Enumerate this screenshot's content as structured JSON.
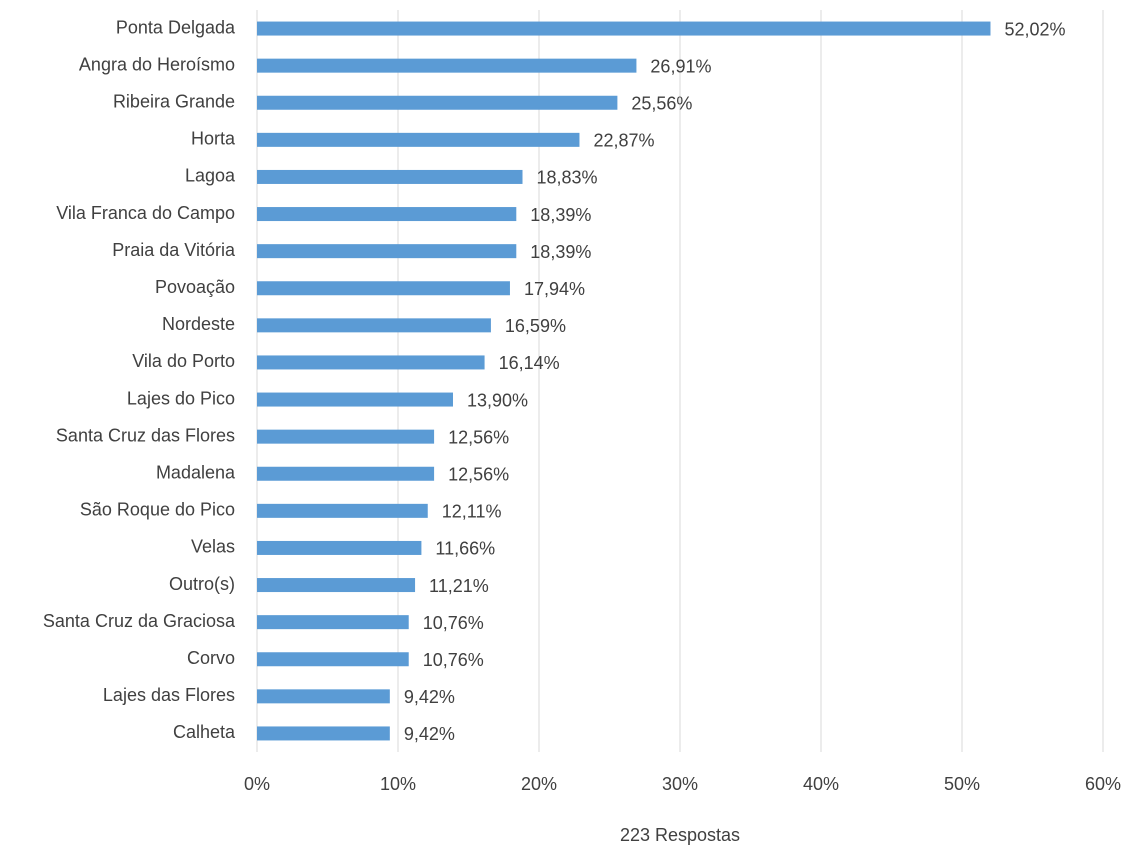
{
  "chart_data": {
    "type": "bar",
    "orientation": "horizontal",
    "x_label": "223 Respostas",
    "categories": [
      "Ponta Delgada",
      "Angra do Heroísmo",
      "Ribeira Grande",
      "Horta",
      "Lagoa",
      "Vila Franca do Campo",
      "Praia da Vitória",
      "Povoação",
      "Nordeste",
      "Vila do Porto",
      "Lajes do Pico",
      "Santa Cruz das Flores",
      "Madalena",
      "São Roque do Pico",
      "Velas",
      "Outro(s)",
      "Santa Cruz da Graciosa",
      "Corvo",
      "Lajes das Flores",
      "Calheta"
    ],
    "values": [
      52.02,
      26.91,
      25.56,
      22.87,
      18.83,
      18.39,
      18.39,
      17.94,
      16.59,
      16.14,
      13.9,
      12.56,
      12.56,
      12.11,
      11.66,
      11.21,
      10.76,
      10.76,
      9.42,
      9.42
    ],
    "value_labels": [
      "52,02%",
      "26,91%",
      "25,56%",
      "22,87%",
      "18,83%",
      "18,39%",
      "18,39%",
      "17,94%",
      "16,59%",
      "16,14%",
      "13,90%",
      "12,56%",
      "12,56%",
      "12,11%",
      "11,66%",
      "11,21%",
      "10,76%",
      "10,76%",
      "9,42%",
      "9,42%"
    ],
    "color": "#5b9bd5",
    "xlim": [
      0,
      60
    ],
    "xticks": [
      {
        "value": 0,
        "label": "0%"
      },
      {
        "value": 10,
        "label": "10%"
      },
      {
        "value": 20,
        "label": "20%"
      },
      {
        "value": 30,
        "label": "30%"
      },
      {
        "value": 40,
        "label": "40%"
      },
      {
        "value": 50,
        "label": "50%"
      },
      {
        "value": 60,
        "label": "60%"
      }
    ],
    "grid": true
  }
}
